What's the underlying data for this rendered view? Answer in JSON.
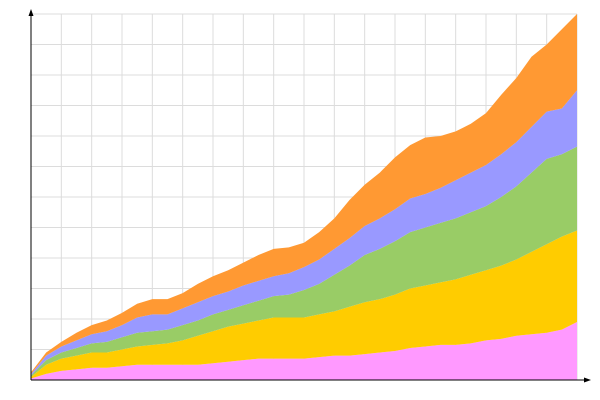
{
  "chart_data": {
    "type": "area",
    "stacked": true,
    "grid": true,
    "legend": "none",
    "xlim": [
      0,
      36
    ],
    "ylim": [
      0,
      12
    ],
    "x": [
      0,
      1,
      2,
      3,
      4,
      5,
      6,
      7,
      8,
      9,
      10,
      11,
      12,
      13,
      14,
      15,
      16,
      17,
      18,
      19,
      20,
      21,
      22,
      23,
      24,
      25,
      26,
      27,
      28,
      29,
      30,
      31,
      32,
      33,
      34,
      35,
      36
    ],
    "series": [
      {
        "color": "#ff99ff",
        "values": [
          0.05,
          0.2,
          0.3,
          0.35,
          0.4,
          0.4,
          0.45,
          0.5,
          0.5,
          0.5,
          0.5,
          0.5,
          0.55,
          0.6,
          0.65,
          0.7,
          0.7,
          0.7,
          0.7,
          0.75,
          0.8,
          0.8,
          0.85,
          0.9,
          0.95,
          1.05,
          1.1,
          1.15,
          1.15,
          1.2,
          1.3,
          1.35,
          1.45,
          1.5,
          1.55,
          1.65,
          1.9
        ]
      },
      {
        "color": "#ffcc00",
        "values": [
          0.05,
          0.3,
          0.4,
          0.45,
          0.5,
          0.5,
          0.55,
          0.6,
          0.65,
          0.7,
          0.8,
          0.95,
          1.05,
          1.15,
          1.2,
          1.25,
          1.35,
          1.35,
          1.35,
          1.4,
          1.45,
          1.6,
          1.7,
          1.75,
          1.85,
          1.95,
          2.0,
          2.05,
          2.15,
          2.25,
          2.3,
          2.4,
          2.5,
          2.7,
          2.9,
          3.05,
          3.0
        ]
      },
      {
        "color": "#99cc66",
        "values": [
          0.05,
          0.15,
          0.2,
          0.25,
          0.3,
          0.35,
          0.4,
          0.45,
          0.45,
          0.45,
          0.5,
          0.5,
          0.55,
          0.55,
          0.6,
          0.65,
          0.7,
          0.75,
          0.9,
          1.0,
          1.2,
          1.35,
          1.55,
          1.65,
          1.75,
          1.85,
          1.9,
          1.95,
          2.0,
          2.05,
          2.1,
          2.25,
          2.4,
          2.6,
          2.8,
          2.7,
          2.75
        ]
      },
      {
        "color": "#9999ff",
        "values": [
          0.05,
          0.15,
          0.2,
          0.25,
          0.3,
          0.35,
          0.4,
          0.5,
          0.55,
          0.5,
          0.55,
          0.6,
          0.6,
          0.6,
          0.65,
          0.65,
          0.65,
          0.7,
          0.75,
          0.8,
          0.85,
          0.9,
          0.95,
          1.0,
          1.05,
          1.1,
          1.1,
          1.15,
          1.25,
          1.3,
          1.35,
          1.4,
          1.45,
          1.5,
          1.55,
          1.5,
          1.85
        ]
      },
      {
        "color": "#ff9933",
        "values": [
          0.05,
          0.1,
          0.15,
          0.25,
          0.3,
          0.35,
          0.4,
          0.45,
          0.5,
          0.5,
          0.5,
          0.6,
          0.65,
          0.7,
          0.75,
          0.85,
          0.9,
          0.85,
          0.8,
          0.9,
          1.0,
          1.25,
          1.35,
          1.5,
          1.7,
          1.75,
          1.85,
          1.7,
          1.6,
          1.6,
          1.7,
          1.95,
          2.1,
          2.3,
          2.2,
          2.6,
          2.5
        ]
      }
    ]
  }
}
